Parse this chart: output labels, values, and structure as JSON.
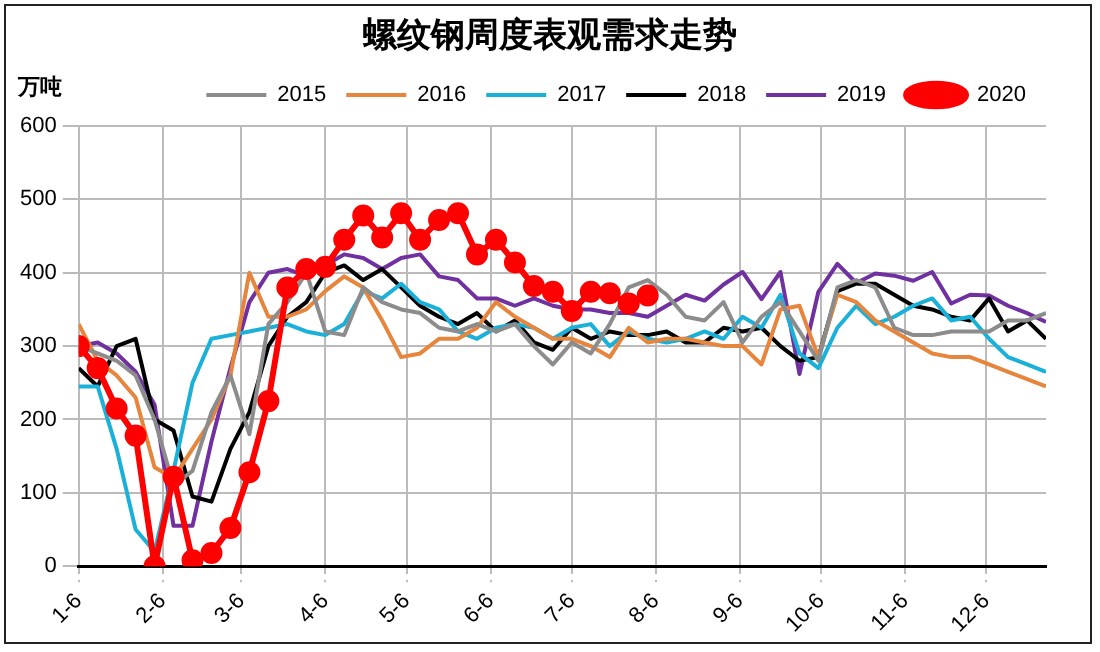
{
  "chart_data": {
    "type": "line",
    "title": "螺纹钢周度表观需求走势",
    "ylabel": "万吨",
    "x": [
      "--01-06",
      "--01-13",
      "--01-20",
      "--01-27",
      "--02-03",
      "--02-10",
      "--02-17",
      "--02-24",
      "--03-02",
      "--03-09",
      "--03-16",
      "--03-23",
      "--03-30",
      "--04-06",
      "--04-13",
      "--04-20",
      "--04-27",
      "--05-04",
      "--05-11",
      "--05-18",
      "--05-25",
      "--06-01",
      "--06-08",
      "--06-15",
      "--06-22",
      "--06-29",
      "--07-06",
      "--07-13",
      "--07-20",
      "--07-27",
      "--08-03",
      "--08-10",
      "--08-17",
      "--08-24",
      "--08-31",
      "--09-07",
      "--09-14",
      "--09-21",
      "--09-28",
      "--10-05",
      "--10-12",
      "--10-19",
      "--10-26",
      "--11-02",
      "--11-09",
      "--11-16",
      "--11-23",
      "--11-30",
      "--12-07",
      "--12-14",
      "--12-21",
      "--12-28"
    ],
    "xlim": [
      "--01-06",
      "--12-28"
    ],
    "xticks": [
      {
        "value": "--01-06",
        "label": "1-6"
      },
      {
        "value": "--02-06",
        "label": "2-6"
      },
      {
        "value": "--03-06",
        "label": "3-6"
      },
      {
        "value": "--04-06",
        "label": "4-6"
      },
      {
        "value": "--05-06",
        "label": "5-6"
      },
      {
        "value": "--06-06",
        "label": "6-6"
      },
      {
        "value": "--07-06",
        "label": "7-6"
      },
      {
        "value": "--08-06",
        "label": "8-6"
      },
      {
        "value": "--09-06",
        "label": "9-6"
      },
      {
        "value": "--10-06",
        "label": "10-6"
      },
      {
        "value": "--11-06",
        "label": "11-6"
      },
      {
        "value": "--12-06",
        "label": "12-6"
      }
    ],
    "ylim": [
      0,
      600
    ],
    "yticks": [
      0,
      100,
      200,
      300,
      400,
      500,
      600
    ],
    "grid": true,
    "legend": "top",
    "marker": "none",
    "line_style": "solid",
    "series": [
      {
        "name": "2015",
        "color": "#8c8c8c",
        "values": [
          300,
          290,
          280,
          260,
          200,
          110,
          130,
          210,
          260,
          180,
          330,
          360,
          400,
          320,
          315,
          380,
          360,
          350,
          345,
          325,
          320,
          330,
          320,
          330,
          300,
          275,
          305,
          290,
          330,
          380,
          390,
          370,
          340,
          335,
          360,
          305,
          340,
          360,
          320,
          280,
          380,
          390,
          380,
          325,
          315,
          315,
          320,
          320,
          320,
          335,
          335,
          345
        ]
      },
      {
        "name": "2016",
        "color": "#e8853d",
        "values": [
          330,
          280,
          260,
          230,
          135,
          120,
          160,
          200,
          260,
          400,
          340,
          340,
          350,
          375,
          395,
          380,
          335,
          285,
          290,
          310,
          310,
          325,
          360,
          340,
          325,
          310,
          310,
          300,
          285,
          325,
          305,
          310,
          310,
          305,
          300,
          300,
          275,
          350,
          355,
          285,
          370,
          360,
          335,
          320,
          305,
          290,
          285,
          285,
          275,
          265,
          255,
          245
        ]
      },
      {
        "name": "2017",
        "color": "#1ab0d8",
        "values": [
          245,
          245,
          160,
          50,
          20,
          130,
          250,
          310,
          315,
          320,
          325,
          330,
          320,
          315,
          330,
          375,
          365,
          385,
          360,
          350,
          320,
          310,
          325,
          330,
          325,
          310,
          325,
          330,
          300,
          320,
          310,
          305,
          310,
          320,
          310,
          340,
          325,
          370,
          290,
          270,
          325,
          355,
          330,
          340,
          355,
          365,
          335,
          340,
          310,
          285,
          275,
          265
        ]
      },
      {
        "name": "2018",
        "color": "#000000",
        "values": [
          270,
          245,
          300,
          310,
          200,
          185,
          95,
          88,
          160,
          210,
          300,
          340,
          360,
          400,
          410,
          390,
          405,
          380,
          355,
          340,
          330,
          345,
          320,
          335,
          305,
          295,
          325,
          310,
          320,
          315,
          315,
          320,
          305,
          305,
          325,
          320,
          325,
          300,
          280,
          285,
          375,
          385,
          385,
          370,
          355,
          350,
          340,
          335,
          365,
          320,
          335,
          310
        ]
      },
      {
        "name": "2019",
        "color": "#7030a0",
        "values": [
          300,
          305,
          290,
          265,
          220,
          55,
          55,
          170,
          270,
          360,
          400,
          405,
          395,
          410,
          425,
          420,
          405,
          420,
          425,
          395,
          390,
          365,
          365,
          355,
          365,
          355,
          350,
          350,
          345,
          345,
          340,
          355,
          370,
          362,
          384,
          401,
          364,
          401,
          262,
          374,
          412,
          386,
          399,
          396,
          389,
          401,
          358,
          370,
          369,
          355,
          345,
          333
        ]
      },
      {
        "name": "2020",
        "color": "#ff0000",
        "marker": "circle",
        "x": [
          "--01-06",
          "--01-13",
          "--01-20",
          "--01-27",
          "--02-03",
          "--02-10",
          "--02-17",
          "--02-24",
          "--03-02",
          "--03-09",
          "--03-16",
          "--03-23",
          "--03-30",
          "--04-06",
          "--04-13",
          "--04-20",
          "--04-27",
          "--05-04",
          "--05-11",
          "--05-18",
          "--05-25",
          "--06-01",
          "--06-08",
          "--06-15",
          "--06-22",
          "--06-29",
          "--07-06",
          "--07-13",
          "--07-20",
          "--07-27",
          "--08-03"
        ],
        "values": [
          300,
          270,
          215,
          178,
          0,
          122,
          8,
          18,
          52,
          128,
          225,
          380,
          405,
          408,
          445,
          478,
          448,
          481,
          445,
          472,
          481,
          425,
          445,
          414,
          382,
          374,
          348,
          374,
          372,
          358,
          369
        ]
      }
    ]
  }
}
